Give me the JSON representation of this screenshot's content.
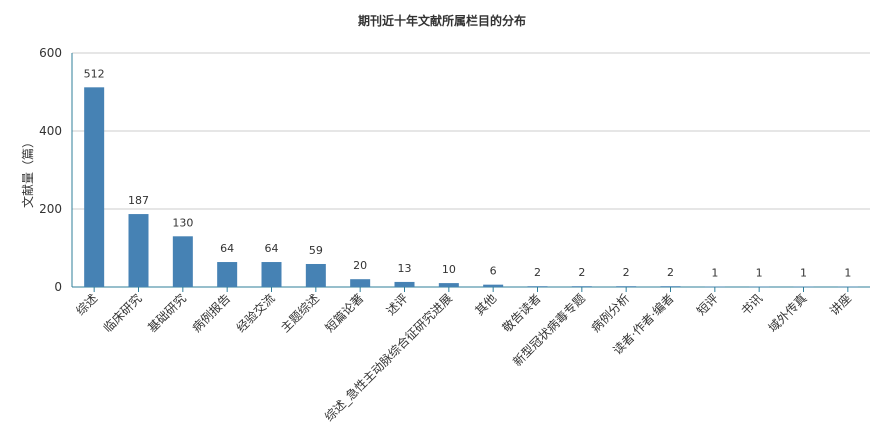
{
  "chart_data": {
    "type": "bar",
    "title": "期刊近十年文献所属栏目的分布",
    "ylabel": "文献量（篇）",
    "xlabel": "",
    "ylim": [
      0,
      600
    ],
    "yticks": [
      0,
      200,
      400,
      600
    ],
    "grid": true,
    "bar_color": "#4682b4",
    "categories": [
      "综述",
      "临床研究",
      "基础研究",
      "病例报告",
      "经验交流",
      "主题综述",
      "短篇论著",
      "述评",
      "综述_急性主动脉综合征研究进展",
      "其他",
      "敬告读者",
      "新型冠状病毒专题",
      "病例分析",
      "读者·作者·编者",
      "短评",
      "书讯",
      "域外传真",
      "讲座"
    ],
    "values": [
      512,
      187,
      130,
      64,
      64,
      59,
      20,
      13,
      10,
      6,
      2,
      2,
      2,
      2,
      1,
      1,
      1,
      1
    ]
  }
}
